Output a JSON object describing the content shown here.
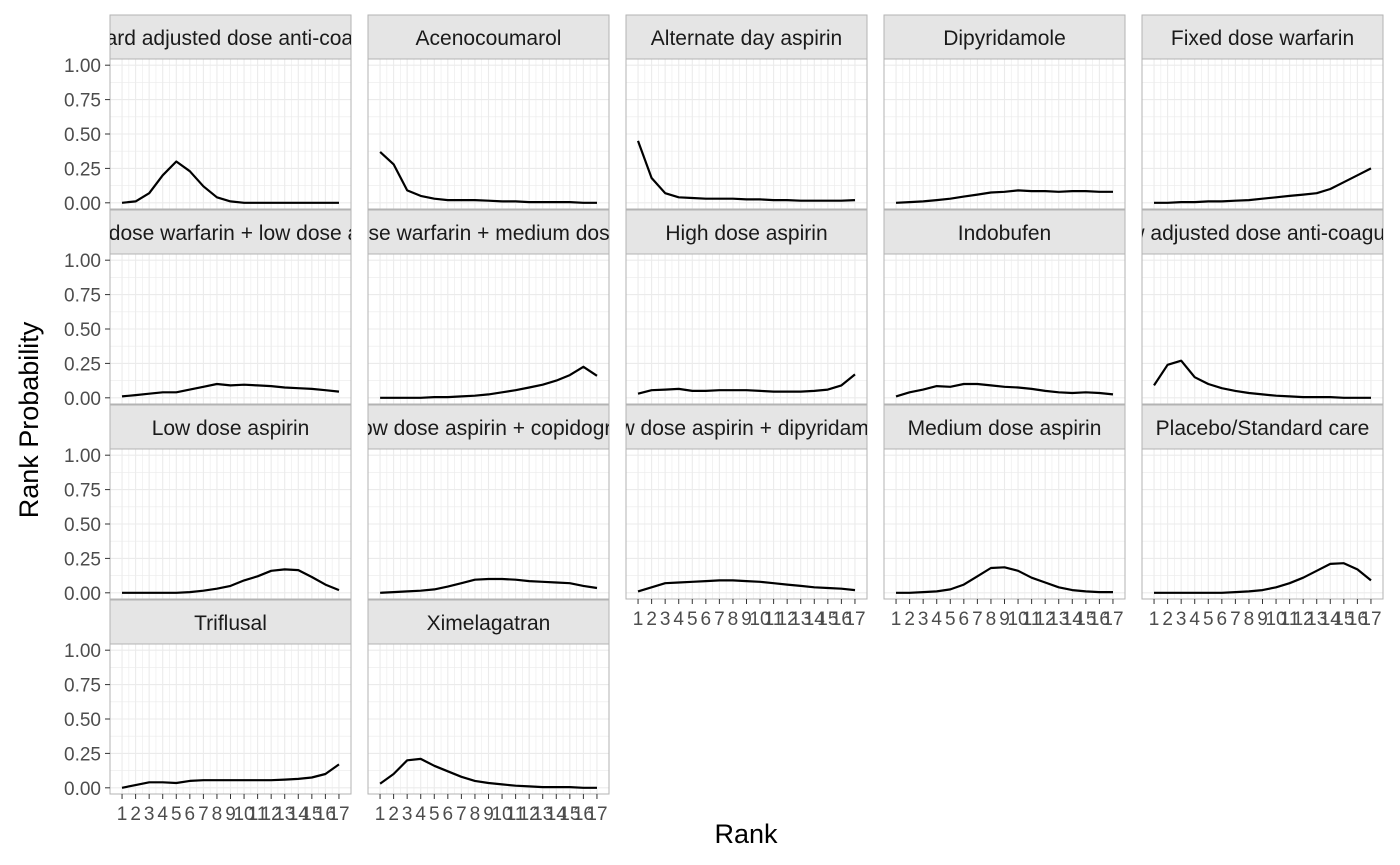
{
  "chart_data": {
    "type": "line",
    "layout": "facet_wrap",
    "facet_columns": 5,
    "xlabel": "Rank",
    "ylabel": "Rank Probability",
    "x": [
      1,
      2,
      3,
      4,
      5,
      6,
      7,
      8,
      9,
      10,
      11,
      12,
      13,
      14,
      15,
      16,
      17
    ],
    "x_tick_labels": [
      "1",
      "2",
      "3",
      "4",
      "5",
      "6",
      "7",
      "8",
      "9",
      "10",
      "11",
      "12",
      "13",
      "14",
      "15",
      "16",
      "17"
    ],
    "ylim": [
      0,
      1
    ],
    "y_ticks": [
      0,
      0.25,
      0.5,
      0.75,
      1
    ],
    "y_tick_labels": [
      "0.00",
      "0.25",
      "0.50",
      "0.75",
      "1.00"
    ],
    "grid": true,
    "line_color": "#000000",
    "strip_fill": "#e5e5e5",
    "panel_border": "#b3b3b3",
    "grid_color": "#ebebeb",
    "panels": [
      {
        "name": "Standard adjusted dose anti-coagulant",
        "values": [
          0.0,
          0.01,
          0.07,
          0.2,
          0.3,
          0.23,
          0.12,
          0.04,
          0.01,
          0.0,
          0.0,
          0.0,
          0.0,
          0.0,
          0.0,
          0.0,
          0.0
        ]
      },
      {
        "name": "Acenocoumarol",
        "values": [
          0.37,
          0.28,
          0.09,
          0.05,
          0.03,
          0.02,
          0.02,
          0.02,
          0.015,
          0.01,
          0.01,
          0.005,
          0.005,
          0.005,
          0.005,
          0.0,
          0.0
        ]
      },
      {
        "name": "Alternate day aspirin",
        "values": [
          0.45,
          0.18,
          0.07,
          0.04,
          0.035,
          0.03,
          0.03,
          0.03,
          0.025,
          0.025,
          0.02,
          0.02,
          0.015,
          0.015,
          0.015,
          0.015,
          0.02
        ]
      },
      {
        "name": "Dipyridamole",
        "values": [
          0.0,
          0.005,
          0.01,
          0.02,
          0.03,
          0.045,
          0.06,
          0.075,
          0.08,
          0.09,
          0.085,
          0.085,
          0.08,
          0.085,
          0.085,
          0.08,
          0.08
        ]
      },
      {
        "name": "Fixed dose warfarin",
        "values": [
          0.0,
          0.0,
          0.005,
          0.005,
          0.01,
          0.01,
          0.015,
          0.02,
          0.03,
          0.04,
          0.05,
          0.06,
          0.07,
          0.1,
          0.15,
          0.2,
          0.25
        ]
      },
      {
        "name": "Fixed dose warfarin + low dose aspirin",
        "values": [
          0.01,
          0.02,
          0.03,
          0.04,
          0.04,
          0.06,
          0.08,
          0.1,
          0.09,
          0.095,
          0.09,
          0.085,
          0.075,
          0.07,
          0.065,
          0.055,
          0.045
        ]
      },
      {
        "name": "Fixed dose warfarin + medium dose aspirin",
        "values": [
          0.0,
          0.0,
          0.0,
          0.0,
          0.005,
          0.005,
          0.01,
          0.015,
          0.025,
          0.04,
          0.055,
          0.075,
          0.095,
          0.125,
          0.165,
          0.225,
          0.16
        ]
      },
      {
        "name": "High dose aspirin",
        "values": [
          0.03,
          0.055,
          0.06,
          0.065,
          0.05,
          0.05,
          0.055,
          0.055,
          0.055,
          0.05,
          0.045,
          0.045,
          0.045,
          0.05,
          0.06,
          0.09,
          0.17
        ]
      },
      {
        "name": "Indobufen",
        "values": [
          0.01,
          0.04,
          0.06,
          0.085,
          0.08,
          0.1,
          0.1,
          0.09,
          0.08,
          0.075,
          0.065,
          0.05,
          0.04,
          0.035,
          0.04,
          0.035,
          0.025
        ]
      },
      {
        "name": "Low adjusted dose anti-coagulant",
        "values": [
          0.09,
          0.24,
          0.27,
          0.15,
          0.1,
          0.07,
          0.05,
          0.035,
          0.025,
          0.015,
          0.01,
          0.005,
          0.005,
          0.005,
          0.0,
          0.0,
          0.0
        ]
      },
      {
        "name": "Low dose aspirin",
        "values": [
          0.0,
          0.0,
          0.0,
          0.0,
          0.0,
          0.005,
          0.015,
          0.03,
          0.05,
          0.09,
          0.12,
          0.16,
          0.17,
          0.165,
          0.115,
          0.06,
          0.02
        ]
      },
      {
        "name": "Low dose aspirin + copidogrel",
        "values": [
          0.0,
          0.005,
          0.01,
          0.015,
          0.025,
          0.045,
          0.07,
          0.095,
          0.1,
          0.1,
          0.095,
          0.085,
          0.08,
          0.075,
          0.07,
          0.05,
          0.035
        ]
      },
      {
        "name": "Low dose aspirin + dipyridamole",
        "values": [
          0.01,
          0.04,
          0.07,
          0.075,
          0.08,
          0.085,
          0.09,
          0.09,
          0.085,
          0.08,
          0.07,
          0.06,
          0.05,
          0.04,
          0.035,
          0.03,
          0.02
        ]
      },
      {
        "name": "Medium dose aspirin",
        "values": [
          0.0,
          0.0,
          0.005,
          0.01,
          0.025,
          0.06,
          0.12,
          0.18,
          0.185,
          0.16,
          0.11,
          0.075,
          0.04,
          0.02,
          0.01,
          0.005,
          0.005
        ]
      },
      {
        "name": "Placebo/Standard care",
        "values": [
          0.0,
          0.0,
          0.0,
          0.0,
          0.0,
          0.0,
          0.005,
          0.01,
          0.02,
          0.04,
          0.07,
          0.11,
          0.16,
          0.21,
          0.215,
          0.17,
          0.09
        ]
      },
      {
        "name": "Triflusal",
        "values": [
          0.0,
          0.02,
          0.04,
          0.04,
          0.035,
          0.05,
          0.055,
          0.055,
          0.055,
          0.055,
          0.055,
          0.055,
          0.06,
          0.065,
          0.075,
          0.1,
          0.17
        ]
      },
      {
        "name": "Ximelagatran",
        "values": [
          0.03,
          0.1,
          0.2,
          0.21,
          0.16,
          0.12,
          0.08,
          0.05,
          0.035,
          0.025,
          0.015,
          0.01,
          0.005,
          0.005,
          0.005,
          0.0,
          0.0
        ]
      }
    ]
  }
}
